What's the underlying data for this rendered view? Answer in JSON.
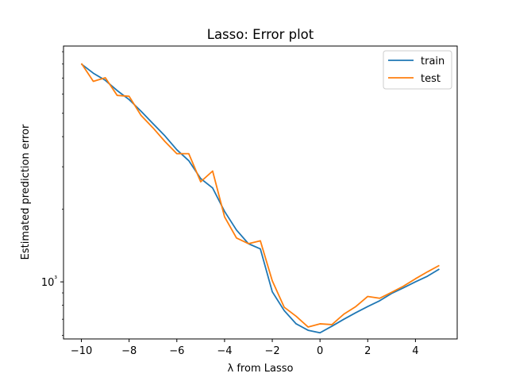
{
  "chart_data": {
    "type": "line",
    "title": "Lasso: Error plot",
    "xlabel": "λ from Lasso",
    "ylabel": "Estimated prediction error",
    "xlim": [
      -10.75,
      5.75
    ],
    "ylim": [
      580,
      9500
    ],
    "yscale": "log",
    "xticks": [
      -10,
      -8,
      -6,
      -4,
      -2,
      0,
      2,
      4
    ],
    "xtick_labels": [
      "−10",
      "−8",
      "−6",
      "−4",
      "−2",
      "0",
      "2",
      "4"
    ],
    "yticks": [
      1000
    ],
    "ytick_labels": [
      "10³"
    ],
    "legend_position": "top-right",
    "grid": false,
    "series": [
      {
        "name": "train",
        "color": "#1f77b4",
        "x": [
          -10,
          -9.5,
          -9,
          -8.5,
          -8,
          -7.5,
          -7,
          -6.5,
          -6,
          -5.5,
          -5,
          -4.5,
          -4,
          -3.5,
          -3,
          -2.5,
          -2,
          -1.5,
          -1,
          -0.5,
          0,
          0.5,
          1,
          1.5,
          2,
          2.5,
          3,
          3.5,
          4,
          4.5,
          5
        ],
        "values": [
          8000,
          7330,
          6850,
          6210,
          5700,
          5100,
          4530,
          4030,
          3530,
          3180,
          2680,
          2450,
          1960,
          1640,
          1440,
          1370,
          910,
          760,
          670,
          630,
          615,
          655,
          700,
          745,
          790,
          835,
          895,
          945,
          1000,
          1055,
          1130
        ]
      },
      {
        "name": "test",
        "color": "#ff7f0e",
        "x": [
          -10,
          -9.5,
          -9,
          -8.5,
          -8,
          -7.5,
          -7,
          -6.5,
          -6,
          -5.5,
          -5,
          -4.5,
          -4,
          -3.5,
          -3,
          -2.5,
          -2,
          -1.5,
          -1,
          -0.5,
          0,
          0.5,
          1,
          1.5,
          2,
          2.5,
          3,
          3.5,
          4,
          4.5,
          5
        ],
        "values": [
          8050,
          6780,
          7020,
          5930,
          5880,
          4900,
          4350,
          3820,
          3400,
          3400,
          2600,
          2880,
          1860,
          1520,
          1440,
          1480,
          1010,
          785,
          720,
          650,
          670,
          665,
          735,
          790,
          870,
          855,
          905,
          960,
          1030,
          1100,
          1170
        ]
      }
    ]
  }
}
